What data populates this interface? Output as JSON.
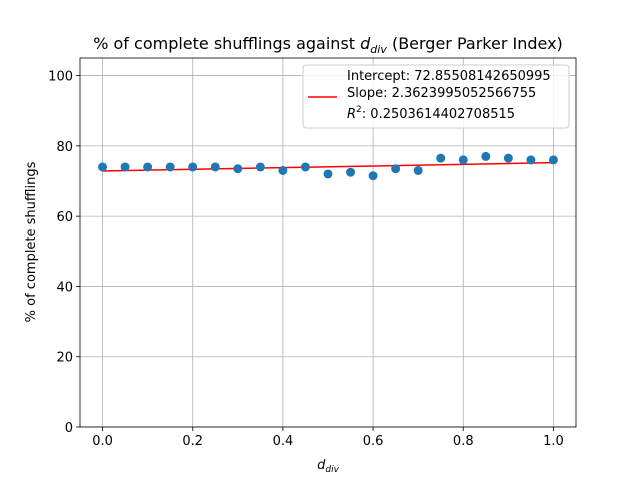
{
  "chart_data": {
    "type": "scatter",
    "title": {
      "prefix": "% of complete shufflings against ",
      "var_main": "d",
      "var_sub": "div",
      "suffix": " (Berger Parker Index)"
    },
    "xlabel": {
      "main": "d",
      "sub": "div"
    },
    "ylabel": "% of complete shufflings",
    "xlim": [
      -0.05,
      1.05
    ],
    "ylim": [
      0,
      105
    ],
    "xticks": [
      0.0,
      0.2,
      0.4,
      0.6,
      0.8,
      1.0
    ],
    "xtick_labels": [
      "0.0",
      "0.2",
      "0.4",
      "0.6",
      "0.8",
      "1.0"
    ],
    "yticks": [
      0,
      20,
      40,
      60,
      80,
      100
    ],
    "ytick_labels": [
      "0",
      "20",
      "40",
      "60",
      "80",
      "100"
    ],
    "grid": true,
    "legend_position": "top-right",
    "points": {
      "color": "#1f77b4",
      "x": [
        0.0,
        0.05,
        0.1,
        0.15,
        0.2,
        0.25,
        0.3,
        0.35,
        0.4,
        0.45,
        0.5,
        0.55,
        0.6,
        0.65,
        0.7,
        0.75,
        0.8,
        0.85,
        0.9,
        0.95,
        1.0
      ],
      "y": [
        74.0,
        74.0,
        74.0,
        74.0,
        74.0,
        74.0,
        73.5,
        74.0,
        73.0,
        74.0,
        72.0,
        72.5,
        71.5,
        73.5,
        73.0,
        76.5,
        76.0,
        77.0,
        76.5,
        76.0,
        76.0
      ]
    },
    "fit_line": {
      "color": "#ff0000",
      "intercept": 72.85508142650995,
      "slope": 2.3623995052566755,
      "x_range": [
        0.0,
        1.0
      ]
    },
    "legend": {
      "line1": "Intercept: 72.85508142650995",
      "line2": "Slope: 2.3623995052566755",
      "line3_label_main": "R",
      "line3_label_sup": "2",
      "line3_value": ": 0.2503614402708515"
    }
  }
}
